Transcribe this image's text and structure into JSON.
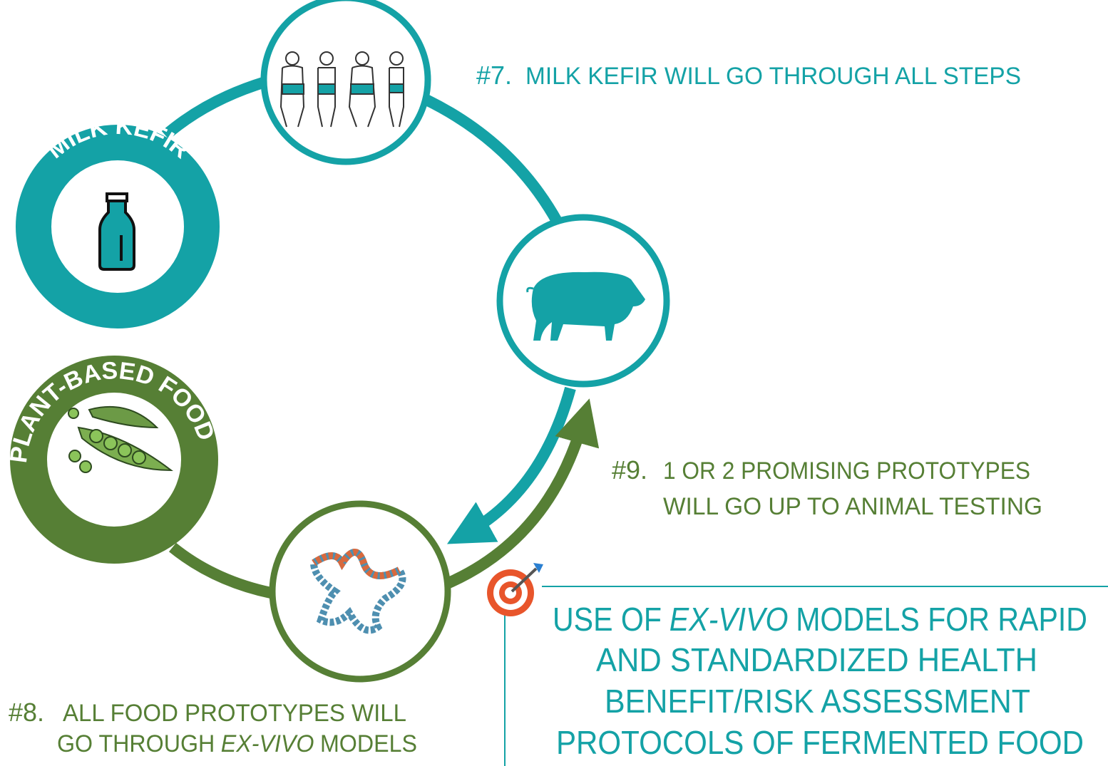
{
  "cycle_labels": {
    "milk_kefir": "MILK KEFIR",
    "plant_based_food": "PLANT-BASED FOOD"
  },
  "steps": [
    {
      "number": "#7.",
      "lines": [
        [
          "MILK KEFIR WILL GO THROUGH ALL STEPS"
        ]
      ]
    },
    {
      "number": "#8.",
      "lines": [
        [
          "ALL FOOD PROTOTYPES WILL"
        ],
        [
          "GO THROUGH",
          "EX-VIVO",
          "MODELS"
        ]
      ]
    },
    {
      "number": "#9.",
      "lines": [
        [
          "1 OR 2 PROMISING PROTOTYPES"
        ],
        [
          "WILL GO UP TO ANIMAL TESTING"
        ]
      ]
    }
  ],
  "goal": {
    "lines": [
      [
        "USE OF",
        "EX-VIVO",
        "MODELS FOR RAPID"
      ],
      [
        "AND STANDARDIZED HEALTH"
      ],
      [
        "BENEFIT/RISK ASSESSMENT"
      ],
      [
        "PROTOCOLS OF FERMENTED FOOD"
      ]
    ]
  }
}
